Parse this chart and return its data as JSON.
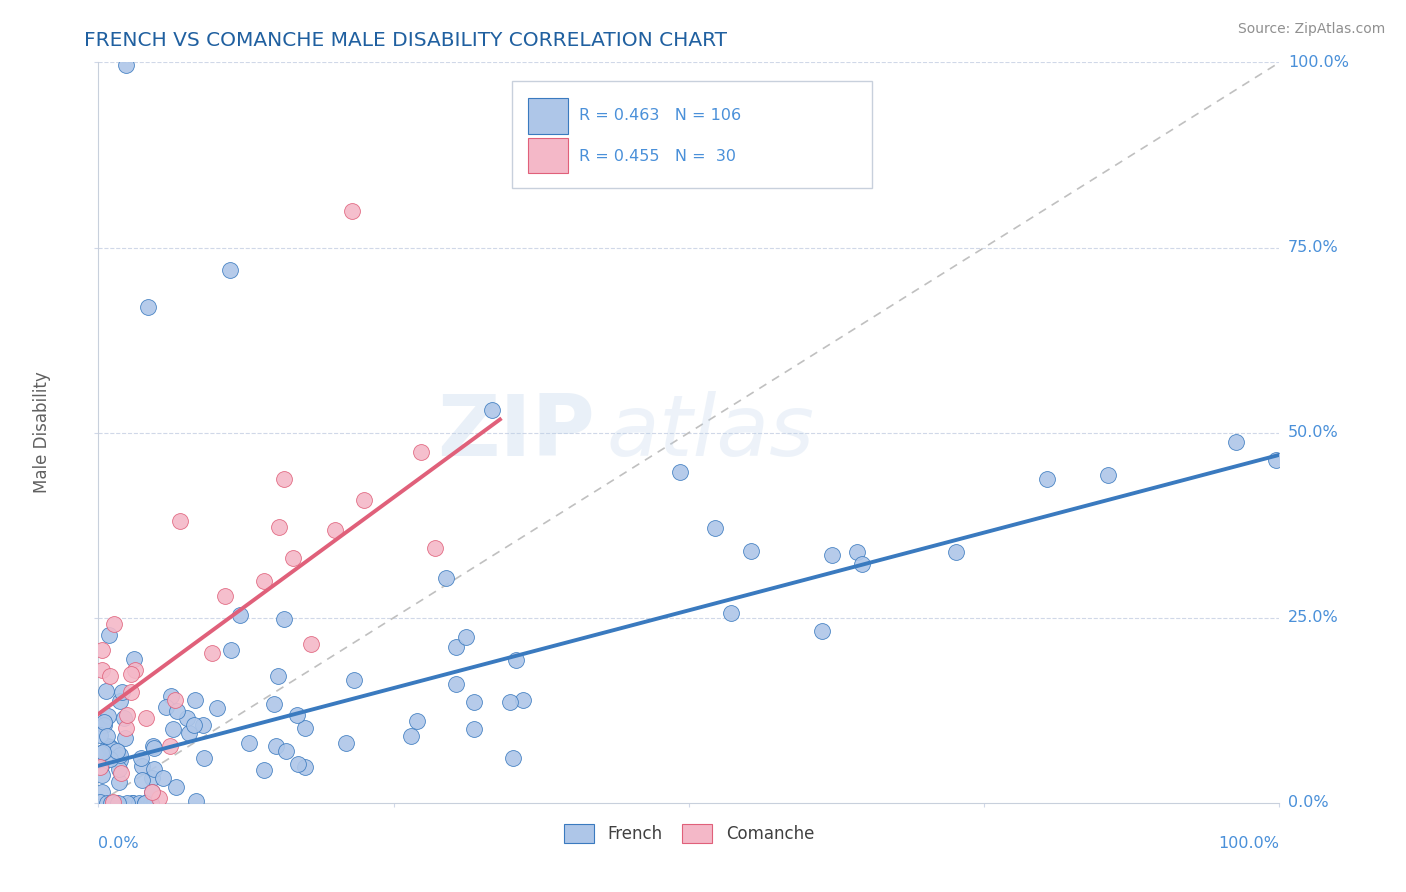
{
  "title": "FRENCH VS COMANCHE MALE DISABILITY CORRELATION CHART",
  "source": "Source: ZipAtlas.com",
  "ylabel": "Male Disability",
  "ytick_labels": [
    "0.0%",
    "25.0%",
    "50.0%",
    "75.0%",
    "100.0%"
  ],
  "ytick_values": [
    0.0,
    0.25,
    0.5,
    0.75,
    1.0
  ],
  "french_color": "#aec6e8",
  "french_line_color": "#3a7abf",
  "comanche_color": "#f4b8c8",
  "comanche_line_color": "#e0607a",
  "ref_line_color": "#c0c0c0",
  "R_french": 0.463,
  "N_french": 106,
  "R_comanche": 0.455,
  "N_comanche": 30,
  "background_color": "#ffffff",
  "grid_color": "#d0d8e8",
  "watermark_zip": "ZIP",
  "watermark_atlas": "atlas",
  "title_color": "#2060a0",
  "source_color": "#909090",
  "axis_label_color": "#4a90d9",
  "ylabel_color": "#606060",
  "legend_text_color": "#4a90d9"
}
